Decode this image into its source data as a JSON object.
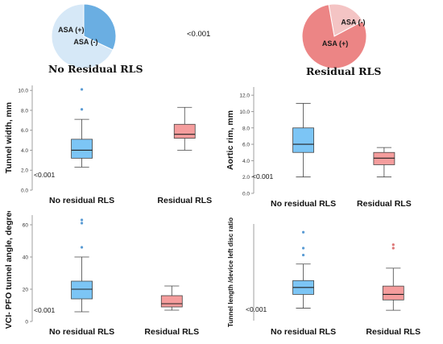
{
  "top": {
    "p_value": "<0.001",
    "groups": [
      {
        "title": "No Residual RLS",
        "slices": [
          {
            "label": "ASA (+)",
            "value": 0.32,
            "color": "#6aaee2"
          },
          {
            "label": "ASA (-)",
            "value": 0.68,
            "color": "#d6e8f7"
          }
        ]
      },
      {
        "title": "Residual RLS",
        "slices": [
          {
            "label": "ASA (-)",
            "value": 0.2,
            "color": "#f4c4c4"
          },
          {
            "label": "ASA (+)",
            "value": 0.8,
            "color": "#ec8585"
          }
        ]
      }
    ]
  },
  "colors": {
    "no_residual": "#7cc5f5",
    "residual": "#f59d9d",
    "whisker": "#444444"
  },
  "chart_data": [
    {
      "type": "box",
      "ylabel": "Tunnel width, mm",
      "p_value": "<0.001",
      "ylim": [
        0,
        10.5
      ],
      "yticks": [
        0.0,
        2.0,
        4.0,
        6.0,
        8.0,
        10.0
      ],
      "tick_decimals": 1,
      "categories": [
        "No residual RLS",
        "Residual RLS"
      ],
      "boxes": [
        {
          "name": "No residual RLS",
          "min": 2.3,
          "q1": 3.2,
          "median": 4.0,
          "q3": 5.1,
          "max": 7.1,
          "outliers": [
            8.1,
            10.1
          ]
        },
        {
          "name": "Residual RLS",
          "min": 4.0,
          "q1": 5.2,
          "median": 5.6,
          "q3": 6.6,
          "max": 8.3,
          "outliers": []
        }
      ]
    },
    {
      "type": "box",
      "ylabel": "Aortic rim, mm",
      "p_value": "<0.001",
      "ylim": [
        0,
        13
      ],
      "yticks": [
        0.0,
        2.0,
        4.0,
        6.0,
        8.0,
        10.0,
        12.0
      ],
      "tick_decimals": 1,
      "categories": [
        "No residual RLS",
        "Residual RLS"
      ],
      "boxes": [
        {
          "name": "No residual RLS",
          "min": 2.0,
          "q1": 5.0,
          "median": 6.0,
          "q3": 8.0,
          "max": 11.0,
          "outliers": []
        },
        {
          "name": "Residual RLS",
          "min": 2.0,
          "q1": 3.5,
          "median": 4.3,
          "q3": 5.0,
          "max": 5.6,
          "outliers": []
        }
      ]
    },
    {
      "type": "box",
      "ylabel": "VCI- PFO tunnel angle, degree",
      "p_value": "<0.001",
      "ylim": [
        0,
        66
      ],
      "yticks": [
        0,
        20,
        40,
        60
      ],
      "tick_decimals": 0,
      "categories": [
        "No residual RLS",
        "Residual RLS"
      ],
      "boxes": [
        {
          "name": "No residual RLS",
          "min": 6,
          "q1": 14,
          "median": 20,
          "q3": 25,
          "max": 40,
          "outliers": [
            46,
            61,
            63
          ]
        },
        {
          "name": "Residual RLS",
          "min": 7,
          "q1": 9,
          "median": 11,
          "q3": 16,
          "max": 22,
          "outliers": []
        }
      ]
    },
    {
      "type": "box",
      "ylabel": "Tunnel length /device left disc ratio",
      "p_value": "<0.001",
      "ylim": [
        0,
        1.4
      ],
      "yticks": [],
      "tick_decimals": 1,
      "categories": [
        "No residual RLS",
        "Residual RLS"
      ],
      "boxes": [
        {
          "name": "No residual RLS",
          "min": 0.18,
          "q1": 0.38,
          "median": 0.48,
          "q3": 0.58,
          "max": 0.82,
          "outliers": [
            0.95,
            1.05,
            1.28
          ]
        },
        {
          "name": "Residual RLS",
          "min": 0.15,
          "q1": 0.3,
          "median": 0.38,
          "q3": 0.5,
          "max": 0.76,
          "outliers": [
            1.05,
            1.1
          ]
        }
      ]
    }
  ]
}
